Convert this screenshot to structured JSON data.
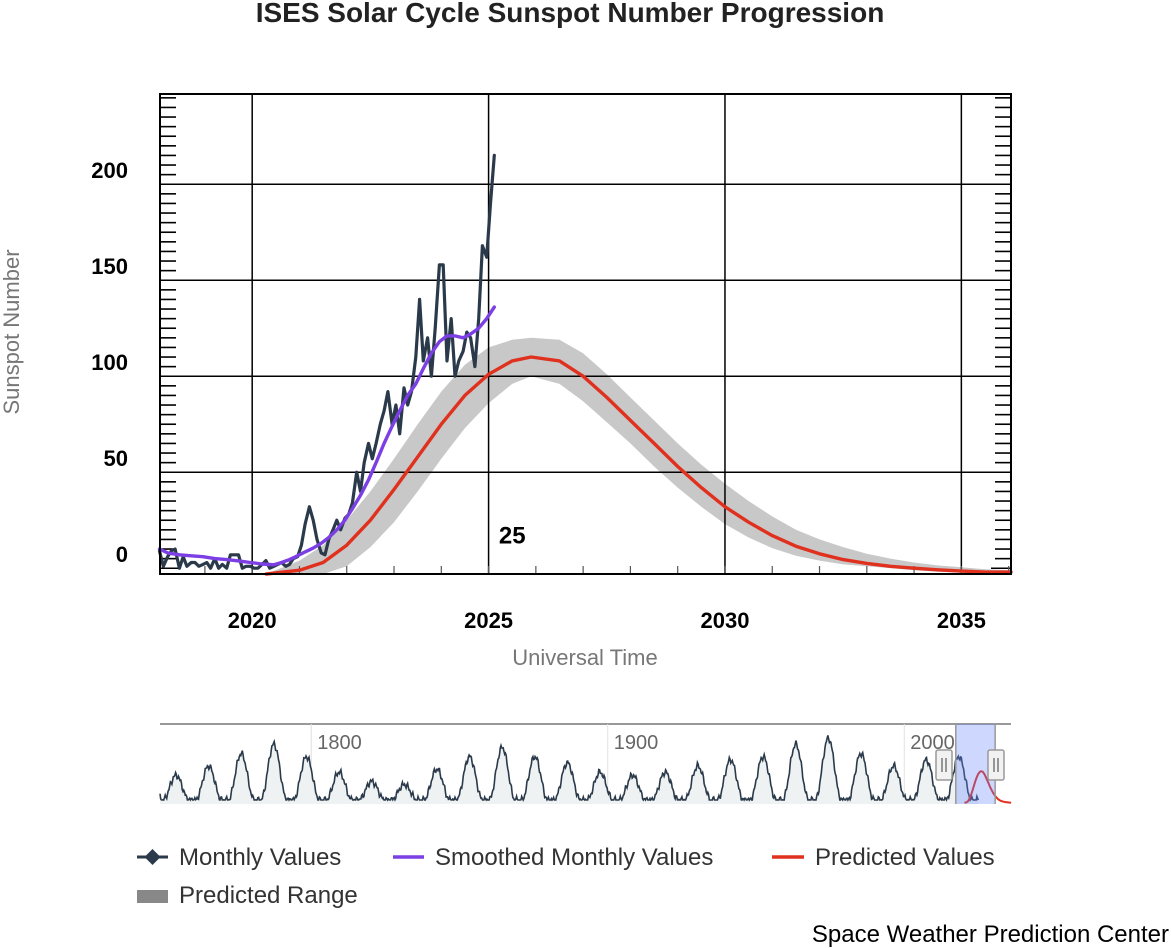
{
  "chart_data": {
    "type": "line",
    "title": "ISES Solar Cycle Sunspot Number Progression",
    "xlabel": "Universal Time",
    "ylabel": "Sunspot Number",
    "xlim": [
      2018.05,
      2036.05
    ],
    "ylim": [
      -3,
      247
    ],
    "x_ticks": [
      "2020",
      "2025",
      "2030",
      "2035"
    ],
    "y_ticks": [
      "0",
      "50",
      "100",
      "150",
      "200"
    ],
    "grid": true,
    "cycle_label": "25",
    "cycle_label_at": {
      "x": 2025.5,
      "y": 13
    },
    "legend_position": "bottom",
    "legend": [
      {
        "name": "Monthly Values",
        "color": "#2b3a4a"
      },
      {
        "name": "Smoothed Monthly Values",
        "color": "#7b3fe4"
      },
      {
        "name": "Predicted Values",
        "color": "#e0301e"
      },
      {
        "name": "Predicted Range",
        "color": "#888888"
      }
    ],
    "series": [
      {
        "name": "Monthly Values",
        "color": "#2b3a4a",
        "points": [
          [
            2018.04,
            9
          ],
          [
            2018.12,
            1
          ],
          [
            2018.21,
            6
          ],
          [
            2018.29,
            9
          ],
          [
            2018.37,
            10
          ],
          [
            2018.46,
            0
          ],
          [
            2018.54,
            6
          ],
          [
            2018.62,
            1
          ],
          [
            2018.71,
            3
          ],
          [
            2018.79,
            3
          ],
          [
            2018.87,
            1
          ],
          [
            2018.96,
            2
          ],
          [
            2019.04,
            3
          ],
          [
            2019.12,
            0
          ],
          [
            2019.21,
            5
          ],
          [
            2019.29,
            0
          ],
          [
            2019.37,
            2
          ],
          [
            2019.46,
            0
          ],
          [
            2019.54,
            7
          ],
          [
            2019.62,
            7
          ],
          [
            2019.71,
            7
          ],
          [
            2019.79,
            0
          ],
          [
            2019.87,
            1
          ],
          [
            2019.96,
            1
          ],
          [
            2020.04,
            0
          ],
          [
            2020.12,
            0
          ],
          [
            2020.21,
            2
          ],
          [
            2020.29,
            4
          ],
          [
            2020.37,
            0
          ],
          [
            2020.46,
            1
          ],
          [
            2020.54,
            2
          ],
          [
            2020.62,
            3
          ],
          [
            2020.71,
            1
          ],
          [
            2020.79,
            2
          ],
          [
            2020.87,
            5
          ],
          [
            2020.96,
            6
          ],
          [
            2021.04,
            12
          ],
          [
            2021.12,
            23
          ],
          [
            2021.21,
            32
          ],
          [
            2021.29,
            25
          ],
          [
            2021.37,
            15
          ],
          [
            2021.46,
            8
          ],
          [
            2021.54,
            7
          ],
          [
            2021.62,
            15
          ],
          [
            2021.71,
            20
          ],
          [
            2021.79,
            25
          ],
          [
            2021.87,
            20
          ],
          [
            2021.96,
            26
          ],
          [
            2022.04,
            28
          ],
          [
            2022.12,
            34
          ],
          [
            2022.21,
            50
          ],
          [
            2022.29,
            40
          ],
          [
            2022.37,
            55
          ],
          [
            2022.46,
            65
          ],
          [
            2022.54,
            57
          ],
          [
            2022.62,
            65
          ],
          [
            2022.71,
            75
          ],
          [
            2022.79,
            82
          ],
          [
            2022.87,
            92
          ],
          [
            2022.96,
            75
          ],
          [
            2023.04,
            85
          ],
          [
            2023.12,
            70
          ],
          [
            2023.21,
            94
          ],
          [
            2023.29,
            85
          ],
          [
            2023.37,
            92
          ],
          [
            2023.46,
            110
          ],
          [
            2023.54,
            140
          ],
          [
            2023.62,
            108
          ],
          [
            2023.71,
            120
          ],
          [
            2023.79,
            100
          ],
          [
            2023.87,
            125
          ],
          [
            2023.96,
            158
          ],
          [
            2024.04,
            158
          ],
          [
            2024.12,
            108
          ],
          [
            2024.21,
            130
          ],
          [
            2024.29,
            100
          ],
          [
            2024.37,
            108
          ],
          [
            2024.46,
            113
          ],
          [
            2024.54,
            123
          ],
          [
            2024.62,
            120
          ],
          [
            2024.71,
            105
          ],
          [
            2024.79,
            130
          ],
          [
            2024.87,
            168
          ],
          [
            2024.96,
            162
          ],
          [
            2025.04,
            190
          ],
          [
            2025.12,
            215
          ]
        ]
      },
      {
        "name": "Smoothed Monthly Values",
        "color": "#7b3fe4",
        "points": [
          [
            2018.04,
            10
          ],
          [
            2018.21,
            8
          ],
          [
            2018.46,
            7
          ],
          [
            2018.71,
            6.5
          ],
          [
            2018.96,
            6
          ],
          [
            2019.21,
            5
          ],
          [
            2019.46,
            4.5
          ],
          [
            2019.71,
            3.8
          ],
          [
            2019.96,
            3
          ],
          [
            2020.21,
            2.2
          ],
          [
            2020.46,
            1.8
          ],
          [
            2020.62,
            3
          ],
          [
            2020.79,
            4.5
          ],
          [
            2020.96,
            6.5
          ],
          [
            2021.12,
            8.5
          ],
          [
            2021.29,
            10.5
          ],
          [
            2021.46,
            13
          ],
          [
            2021.62,
            16
          ],
          [
            2021.79,
            20
          ],
          [
            2021.96,
            25
          ],
          [
            2022.12,
            31
          ],
          [
            2022.29,
            38
          ],
          [
            2022.46,
            46
          ],
          [
            2022.62,
            55
          ],
          [
            2022.79,
            65
          ],
          [
            2022.96,
            74
          ],
          [
            2023.12,
            82
          ],
          [
            2023.29,
            90
          ],
          [
            2023.46,
            96
          ],
          [
            2023.62,
            104
          ],
          [
            2023.79,
            112
          ],
          [
            2023.96,
            118
          ],
          [
            2024.12,
            121
          ],
          [
            2024.29,
            121
          ],
          [
            2024.46,
            120
          ],
          [
            2024.62,
            122
          ],
          [
            2024.79,
            125
          ],
          [
            2024.96,
            130
          ],
          [
            2025.12,
            136
          ]
        ]
      },
      {
        "name": "Predicted Values",
        "color": "#e0301e",
        "points": [
          [
            2020.3,
            -3
          ],
          [
            2021.0,
            -1
          ],
          [
            2021.5,
            3
          ],
          [
            2022.0,
            12
          ],
          [
            2022.5,
            25
          ],
          [
            2023.0,
            41
          ],
          [
            2023.5,
            58
          ],
          [
            2024.0,
            75
          ],
          [
            2024.5,
            90
          ],
          [
            2025.0,
            101
          ],
          [
            2025.5,
            108
          ],
          [
            2025.9,
            110
          ],
          [
            2026.5,
            108
          ],
          [
            2027.0,
            100
          ],
          [
            2027.5,
            89
          ],
          [
            2028.0,
            77
          ],
          [
            2028.5,
            65
          ],
          [
            2029.0,
            53
          ],
          [
            2029.5,
            42
          ],
          [
            2030.0,
            32
          ],
          [
            2030.5,
            24
          ],
          [
            2031.0,
            17
          ],
          [
            2031.5,
            11.5
          ],
          [
            2032.0,
            7.5
          ],
          [
            2032.5,
            4.5
          ],
          [
            2033.0,
            2.5
          ],
          [
            2033.5,
            1
          ],
          [
            2034.0,
            0
          ],
          [
            2034.5,
            -0.8
          ],
          [
            2035.0,
            -1.5
          ],
          [
            2035.5,
            -2
          ],
          [
            2036.05,
            -2
          ]
        ]
      }
    ],
    "predicted_range": {
      "name": "Predicted Range",
      "color": "#c8c8c8",
      "x": [
        2020.3,
        2021.0,
        2021.5,
        2022.0,
        2022.5,
        2023.0,
        2023.5,
        2024.0,
        2024.5,
        2025.0,
        2025.5,
        2025.9,
        2026.5,
        2027.0,
        2027.5,
        2028.0,
        2028.5,
        2029.0,
        2029.5,
        2030.0,
        2030.5,
        2031.0,
        2031.5,
        2032.0,
        2032.5,
        2033.0,
        2033.5,
        2034.0,
        2034.5,
        2035.0,
        2035.5,
        2036.05
      ],
      "high": [
        -3,
        4,
        12,
        25,
        40,
        57,
        75,
        92,
        106,
        115,
        119,
        120,
        119,
        112,
        101,
        89,
        77,
        65,
        54,
        44,
        35,
        27,
        20,
        15,
        11,
        7.5,
        5,
        3,
        1.5,
        0.5,
        -0.5,
        -1
      ],
      "low": [
        -3,
        -3,
        -3,
        1,
        11,
        24,
        40,
        57,
        73,
        86,
        96,
        100,
        96,
        87,
        76,
        65,
        53,
        42,
        32,
        23,
        16,
        10.5,
        6.5,
        4,
        2,
        1,
        0,
        -1,
        -1.8,
        -2.3,
        -2.7,
        -3
      ]
    },
    "navigator": {
      "x_ticks": [
        "1800",
        "1900",
        "2000"
      ],
      "xlim": [
        1749,
        2036
      ],
      "selected_range": [
        2018.05,
        2036.05
      ]
    }
  },
  "credit": "Space Weather Prediction Center"
}
